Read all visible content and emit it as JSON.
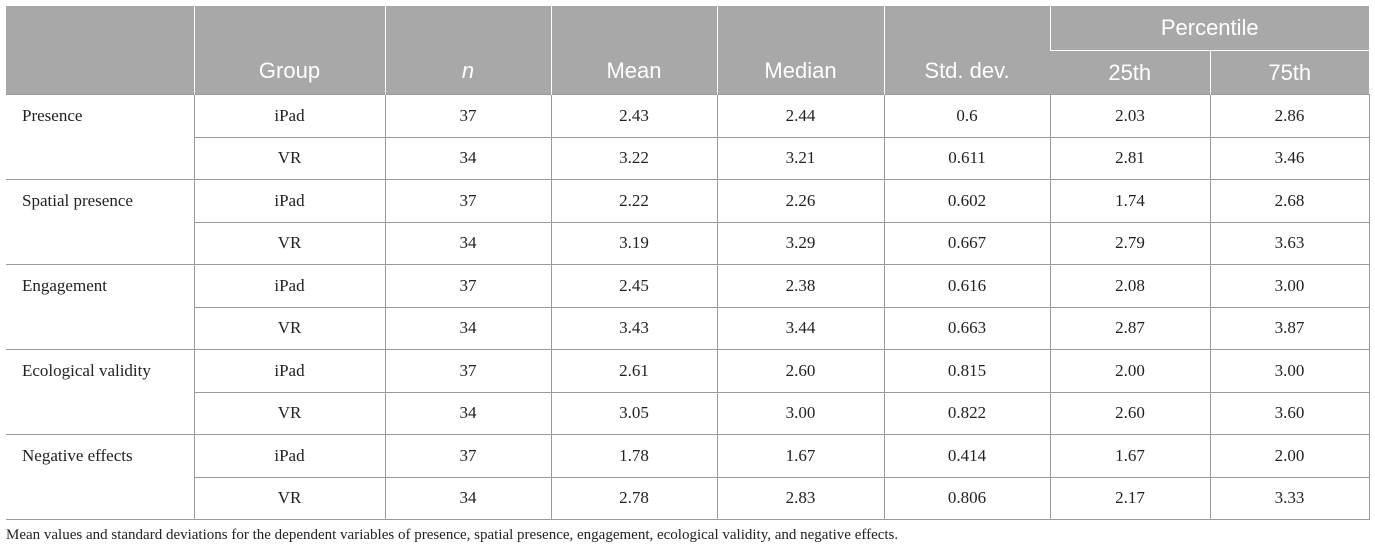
{
  "header": {
    "percentile": "Percentile",
    "group": "Group",
    "n": "n",
    "mean": "Mean",
    "median": "Median",
    "std": "Std. dev.",
    "p25": "25th",
    "p75": "75th"
  },
  "rows": [
    {
      "variable": "Presence",
      "ipad": {
        "group": "iPad",
        "n": "37",
        "mean": "2.43",
        "median": "2.44",
        "std": "0.6",
        "p25": "2.03",
        "p75": "2.86"
      },
      "vr": {
        "group": "VR",
        "n": "34",
        "mean": "3.22",
        "median": "3.21",
        "std": "0.611",
        "p25": "2.81",
        "p75": "3.46"
      }
    },
    {
      "variable": "Spatial presence",
      "ipad": {
        "group": "iPad",
        "n": "37",
        "mean": "2.22",
        "median": "2.26",
        "std": "0.602",
        "p25": "1.74",
        "p75": "2.68"
      },
      "vr": {
        "group": "VR",
        "n": "34",
        "mean": "3.19",
        "median": "3.29",
        "std": "0.667",
        "p25": "2.79",
        "p75": "3.63"
      }
    },
    {
      "variable": "Engagement",
      "ipad": {
        "group": "iPad",
        "n": "37",
        "mean": "2.45",
        "median": "2.38",
        "std": "0.616",
        "p25": "2.08",
        "p75": "3.00"
      },
      "vr": {
        "group": "VR",
        "n": "34",
        "mean": "3.43",
        "median": "3.44",
        "std": "0.663",
        "p25": "2.87",
        "p75": "3.87"
      }
    },
    {
      "variable": "Ecological validity",
      "ipad": {
        "group": "iPad",
        "n": "37",
        "mean": "2.61",
        "median": "2.60",
        "std": "0.815",
        "p25": "2.00",
        "p75": "3.00"
      },
      "vr": {
        "group": "VR",
        "n": "34",
        "mean": "3.05",
        "median": "3.00",
        "std": "0.822",
        "p25": "2.60",
        "p75": "3.60"
      }
    },
    {
      "variable": "Negative effects",
      "ipad": {
        "group": "iPad",
        "n": "37",
        "mean": "1.78",
        "median": "1.67",
        "std": "0.414",
        "p25": "1.67",
        "p75": "2.00"
      },
      "vr": {
        "group": "VR",
        "n": "34",
        "mean": "2.78",
        "median": "2.83",
        "std": "0.806",
        "p25": "2.17",
        "p75": "3.33"
      }
    }
  ],
  "footnote": "Mean values and standard deviations for the dependent variables of presence, spatial presence, engagement, ecological validity, and negative effects."
}
